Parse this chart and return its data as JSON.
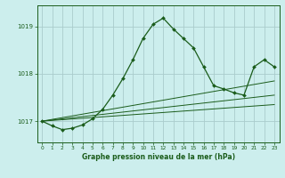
{
  "title": "Graphe pression niveau de la mer (hPa)",
  "bg_color": "#cceeed",
  "grid_color": "#aacccc",
  "line_color": "#1a5c1a",
  "xlim": [
    -0.5,
    23.5
  ],
  "ylim": [
    1016.55,
    1019.45
  ],
  "yticks": [
    1017,
    1018,
    1019
  ],
  "xticks": [
    0,
    1,
    2,
    3,
    4,
    5,
    6,
    7,
    8,
    9,
    10,
    11,
    12,
    13,
    14,
    15,
    16,
    17,
    18,
    19,
    20,
    21,
    22,
    23
  ],
  "flat_lines": [
    {
      "x": [
        0,
        23
      ],
      "y": [
        1017.0,
        1017.35
      ]
    },
    {
      "x": [
        0,
        23
      ],
      "y": [
        1017.0,
        1017.55
      ]
    },
    {
      "x": [
        0,
        23
      ],
      "y": [
        1017.0,
        1017.85
      ]
    }
  ],
  "main_line": {
    "x": [
      0,
      1,
      2,
      3,
      4,
      5,
      6,
      7,
      8,
      9,
      10,
      11,
      12,
      13,
      14,
      15,
      16,
      17,
      18,
      19,
      20,
      21,
      22,
      23
    ],
    "y": [
      1017.0,
      1016.9,
      1016.82,
      1016.85,
      1016.92,
      1017.05,
      1017.25,
      1017.55,
      1017.9,
      1018.3,
      1018.75,
      1019.05,
      1019.18,
      1018.95,
      1018.75,
      1018.55,
      1018.15,
      1017.75,
      1017.68,
      1017.6,
      1017.55,
      1018.15,
      1018.3,
      1018.15
    ]
  }
}
